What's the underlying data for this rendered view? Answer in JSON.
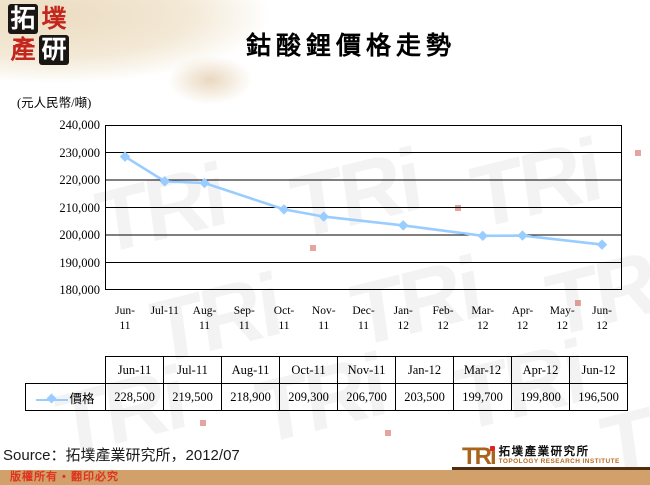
{
  "header": {
    "logo_chars": [
      "拓",
      "墣",
      "產",
      "研"
    ],
    "title": "鈷酸鋰價格走勢"
  },
  "chart_data": {
    "type": "line",
    "title": "鈷酸鋰價格走勢",
    "unit_label": "(元人民幣/噸)",
    "categories": [
      "Jun-11",
      "Jul-11",
      "Aug-11",
      "Sep-11",
      "Oct-11",
      "Nov-11",
      "Dec-11",
      "Jan-12",
      "Feb-12",
      "Mar-12",
      "Apr-12",
      "May-12",
      "Jun-12"
    ],
    "x_tick_lines": [
      [
        "Jun-",
        "11"
      ],
      [
        "Jul-11"
      ],
      [
        "Aug-",
        "11"
      ],
      [
        "Sep-",
        "11"
      ],
      [
        "Oct-",
        "11"
      ],
      [
        "Nov-",
        "11"
      ],
      [
        "Dec-",
        "11"
      ],
      [
        "Jan-",
        "12"
      ],
      [
        "Feb-",
        "12"
      ],
      [
        "Mar-",
        "12"
      ],
      [
        "Apr-",
        "12"
      ],
      [
        "May-",
        "12"
      ],
      [
        "Jun-",
        "12"
      ]
    ],
    "series": [
      {
        "name": "價格",
        "values": [
          228500,
          219500,
          218900,
          null,
          209300,
          206700,
          null,
          203500,
          null,
          199700,
          199800,
          null,
          196500
        ]
      }
    ],
    "ylim": [
      180000,
      240000
    ],
    "ytick_step": 10000,
    "ytick_labels": [
      "240,000",
      "230,000",
      "220,000",
      "210,000",
      "200,000",
      "190,000",
      "180,000"
    ],
    "line_color": "#99ccff",
    "marker": "diamond",
    "grid": true,
    "legend_position": "table-row-header"
  },
  "table": {
    "legend_label": "價格",
    "headers": [
      "Jun-11",
      "Jul-11",
      "Aug-11",
      "Oct-11",
      "Nov-11",
      "Jan-12",
      "Mar-12",
      "Apr-12",
      "Jun-12"
    ],
    "values": [
      "228,500",
      "219,500",
      "218,900",
      "209,300",
      "206,700",
      "203,500",
      "199,700",
      "199,800",
      "196,500"
    ]
  },
  "footer": {
    "source": "Source：拓墣產業研究所，2012/07",
    "copyright": "版權所有 • 翻印必究",
    "brand": {
      "tri": "TRi",
      "name_zh": "拓墣產業研究所",
      "name_en": "TOPOLOGY RESEARCH INSTITUTE"
    }
  },
  "watermark": {
    "text": "TRi"
  },
  "colors": {
    "line": "#99ccff",
    "bar": "#d2a06a",
    "copyright_red": "#de3420",
    "brand_orange": "#a9641c",
    "logo_red": "#c3261c"
  }
}
